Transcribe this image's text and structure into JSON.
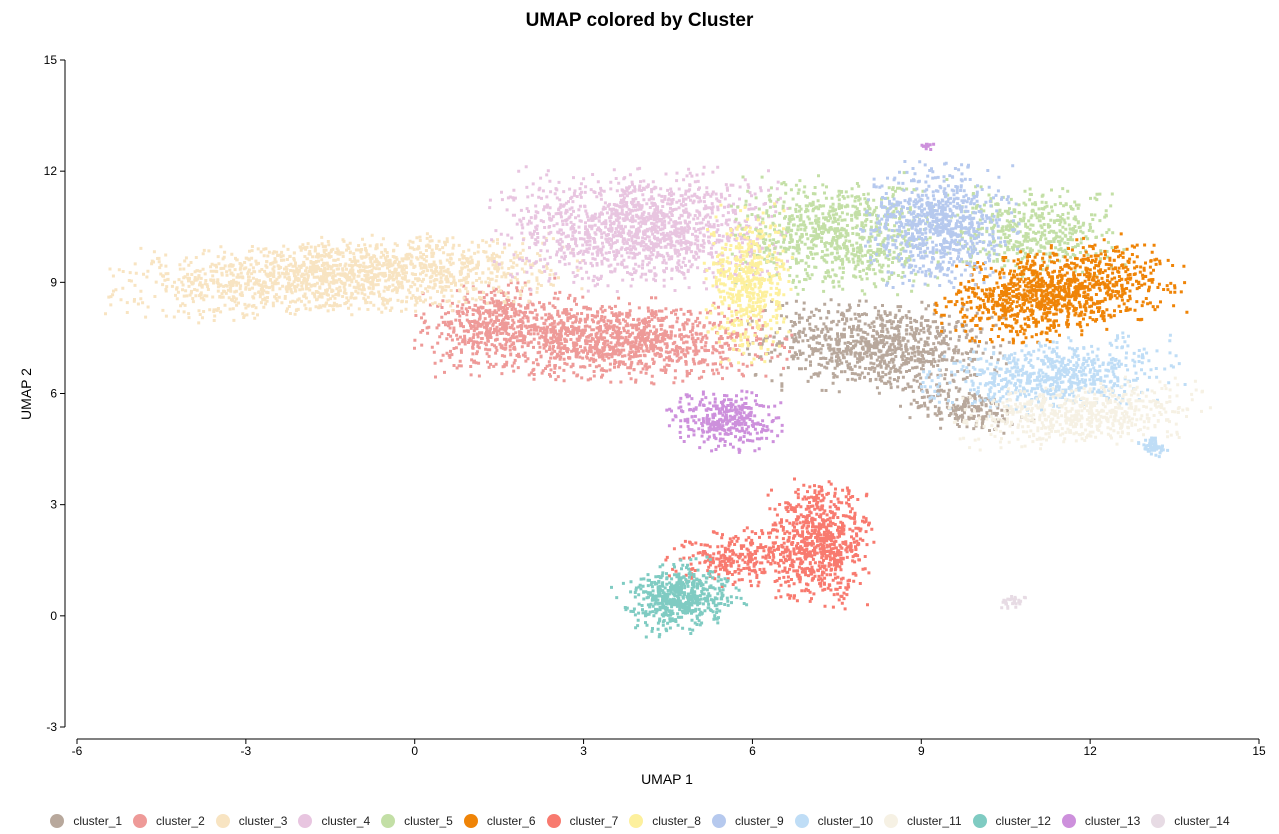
{
  "chart_data": {
    "type": "scatter",
    "title": "UMAP colored by Cluster",
    "xlabel": "UMAP 1",
    "ylabel": "UMAP 2",
    "xlim": [
      -6,
      15
    ],
    "ylim": [
      -3,
      15
    ],
    "xticks": [
      "-6",
      "-3",
      "0",
      "3",
      "6",
      "9",
      "12",
      "15"
    ],
    "yticks": [
      "-3",
      "0",
      "3",
      "6",
      "9",
      "12",
      "15"
    ],
    "grid": false,
    "legend_position": "bottom",
    "series": [
      {
        "name": "cluster_1",
        "color": "#b8a89c",
        "blobs": [
          [
            8.2,
            7.3,
            1.3,
            0.75,
            -0.15,
            900
          ],
          [
            9.8,
            5.6,
            0.7,
            0.35,
            -0.2,
            200
          ]
        ]
      },
      {
        "name": "cluster_2",
        "color": "#ee9a98",
        "blobs": [
          [
            3.3,
            7.5,
            1.9,
            0.65,
            -0.05,
            1400
          ],
          [
            1.4,
            8.2,
            0.8,
            0.5,
            0.1,
            250
          ]
        ]
      },
      {
        "name": "cluster_3",
        "color": "#f8e4c2",
        "blobs": [
          [
            -1.3,
            9.2,
            2.4,
            0.6,
            0.08,
            1600
          ]
        ]
      },
      {
        "name": "cluster_4",
        "color": "#e8c5e0",
        "blobs": [
          [
            4.0,
            10.5,
            1.5,
            0.95,
            0.0,
            1400
          ]
        ]
      },
      {
        "name": "cluster_5",
        "color": "#c3dfa6",
        "blobs": [
          [
            7.5,
            10.3,
            1.1,
            0.95,
            0.0,
            800
          ],
          [
            11.0,
            10.4,
            0.9,
            0.7,
            0.0,
            450
          ]
        ]
      },
      {
        "name": "cluster_6",
        "color": "#ef8407",
        "blobs": [
          [
            11.4,
            8.8,
            1.3,
            0.7,
            0.3,
            1100
          ]
        ]
      },
      {
        "name": "cluster_7",
        "color": "#f87a6f",
        "blobs": [
          [
            7.2,
            2.0,
            0.55,
            1.0,
            0.0,
            700
          ],
          [
            5.8,
            1.6,
            0.8,
            0.45,
            0.2,
            300
          ]
        ]
      },
      {
        "name": "cluster_8",
        "color": "#fdf09d",
        "blobs": [
          [
            5.9,
            9.0,
            0.45,
            1.2,
            0.0,
            500
          ]
        ]
      },
      {
        "name": "cluster_9",
        "color": "#b6c9ee",
        "blobs": [
          [
            9.3,
            10.6,
            0.8,
            0.95,
            0.0,
            800
          ]
        ]
      },
      {
        "name": "cluster_10",
        "color": "#bfddf6",
        "blobs": [
          [
            11.3,
            6.5,
            1.3,
            0.55,
            0.15,
            650
          ],
          [
            13.1,
            4.6,
            0.15,
            0.15,
            0.0,
            60
          ]
        ]
      },
      {
        "name": "cluster_11",
        "color": "#f6f1e4",
        "blobs": [
          [
            11.8,
            5.5,
            1.3,
            0.5,
            0.1,
            600
          ]
        ]
      },
      {
        "name": "cluster_12",
        "color": "#7fcbc2",
        "blobs": [
          [
            4.7,
            0.5,
            0.6,
            0.55,
            0.5,
            550
          ]
        ]
      },
      {
        "name": "cluster_13",
        "color": "#cd90dc",
        "blobs": [
          [
            5.5,
            5.3,
            0.6,
            0.5,
            0.0,
            350
          ],
          [
            9.1,
            12.7,
            0.1,
            0.05,
            0.0,
            12
          ]
        ]
      },
      {
        "name": "cluster_14",
        "color": "#e7dbe4",
        "blobs": [
          [
            10.6,
            0.4,
            0.2,
            0.1,
            0.5,
            30
          ]
        ]
      }
    ]
  },
  "legend": {
    "items": [
      {
        "label": "cluster_1",
        "color": "#b8a89c"
      },
      {
        "label": "cluster_2",
        "color": "#ee9a98"
      },
      {
        "label": "cluster_3",
        "color": "#f8e4c2"
      },
      {
        "label": "cluster_4",
        "color": "#e8c5e0"
      },
      {
        "label": "cluster_5",
        "color": "#c3dfa6"
      },
      {
        "label": "cluster_6",
        "color": "#ef8407"
      },
      {
        "label": "cluster_7",
        "color": "#f87a6f"
      },
      {
        "label": "cluster_8",
        "color": "#fdf09d"
      },
      {
        "label": "cluster_9",
        "color": "#b6c9ee"
      },
      {
        "label": "cluster_10",
        "color": "#bfddf6"
      },
      {
        "label": "cluster_11",
        "color": "#f6f1e4"
      },
      {
        "label": "cluster_12",
        "color": "#7fcbc2"
      },
      {
        "label": "cluster_13",
        "color": "#cd90dc"
      },
      {
        "label": "cluster_14",
        "color": "#e7dbe4"
      }
    ]
  }
}
